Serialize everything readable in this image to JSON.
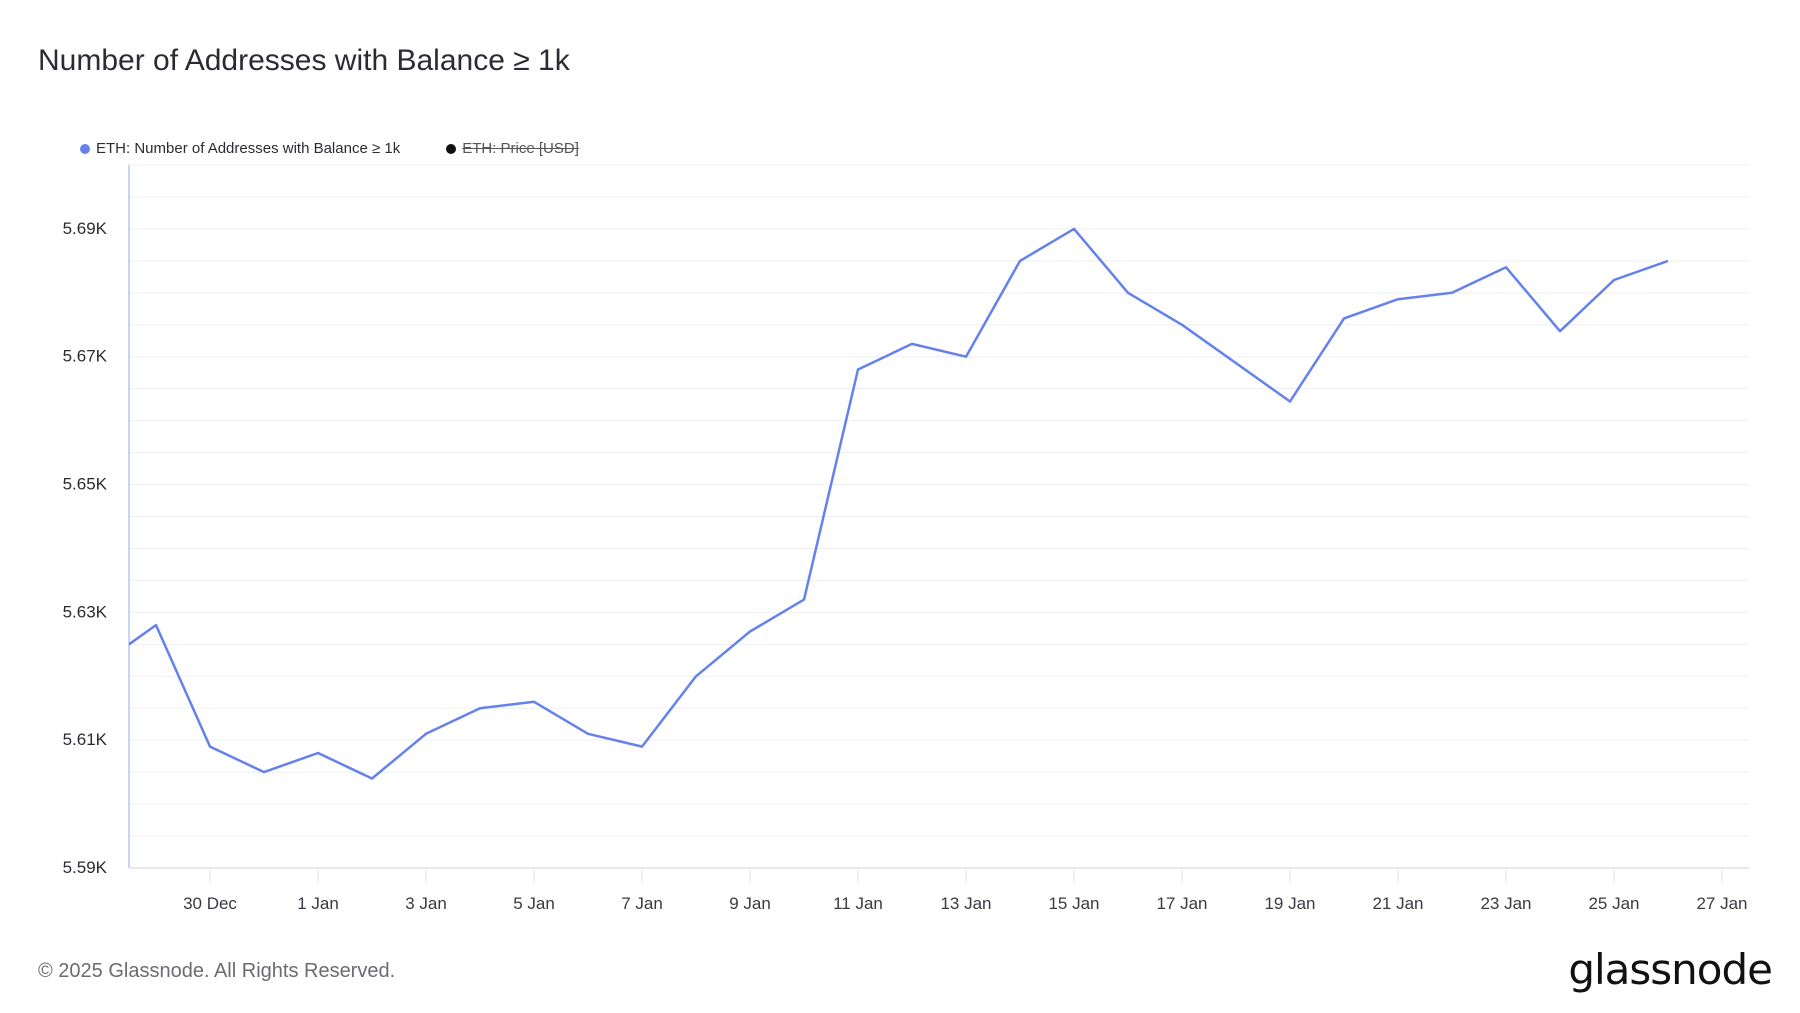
{
  "title": "Number of Addresses with Balance ≥ 1k",
  "legend": [
    {
      "label": "ETH: Number of Addresses with Balance ≥ 1k",
      "color": "#6481ee",
      "active": true
    },
    {
      "label": "ETH: Price [USD]",
      "color": "#111111",
      "active": false
    }
  ],
  "footer": "© 2025 Glassnode. All Rights Reserved.",
  "logo": "glassnode",
  "chart_data": {
    "type": "line",
    "title": "Number of Addresses with Balance ≥ 1k",
    "xlim": [
      "2024-12-28T12:00",
      "2025-01-27T12:00"
    ],
    "ylim": [
      5590,
      5700
    ],
    "grid": true,
    "legend_position": "top-left",
    "y_ticks": [
      5590,
      5610,
      5630,
      5650,
      5670,
      5690
    ],
    "y_tick_labels": [
      "5.59K",
      "5.61K",
      "5.63K",
      "5.65K",
      "5.67K",
      "5.69K"
    ],
    "x_ticks": [
      "2024-12-30",
      "2025-01-01",
      "2025-01-03",
      "2025-01-05",
      "2025-01-07",
      "2025-01-09",
      "2025-01-11",
      "2025-01-13",
      "2025-01-15",
      "2025-01-17",
      "2025-01-19",
      "2025-01-21",
      "2025-01-23",
      "2025-01-25",
      "2025-01-27"
    ],
    "x_tick_labels": [
      "30 Dec",
      "1 Jan",
      "3 Jan",
      "5 Jan",
      "7 Jan",
      "9 Jan",
      "11 Jan",
      "13 Jan",
      "15 Jan",
      "17 Jan",
      "19 Jan",
      "21 Jan",
      "23 Jan",
      "25 Jan",
      "27 Jan"
    ],
    "series": [
      {
        "name": "ETH: Number of Addresses with Balance ≥ 1k",
        "color": "#6481ee",
        "x": [
          "2024-12-28",
          "2024-12-29",
          "2024-12-30",
          "2024-12-31",
          "2025-01-01",
          "2025-01-02",
          "2025-01-03",
          "2025-01-04",
          "2025-01-05",
          "2025-01-06",
          "2025-01-07",
          "2025-01-08",
          "2025-01-09",
          "2025-01-10",
          "2025-01-11",
          "2025-01-12",
          "2025-01-13",
          "2025-01-14",
          "2025-01-15",
          "2025-01-16",
          "2025-01-17",
          "2025-01-18",
          "2025-01-19",
          "2025-01-20",
          "2025-01-21",
          "2025-01-22",
          "2025-01-23",
          "2025-01-24",
          "2025-01-25",
          "2025-01-26"
        ],
        "values": [
          5622,
          5628,
          5609,
          5605,
          5608,
          5604,
          5611,
          5615,
          5616,
          5611,
          5609,
          5620,
          5627,
          5632,
          5668,
          5672,
          5670,
          5685,
          5690,
          5680,
          5675,
          5669,
          5663,
          5676,
          5679,
          5680,
          5684,
          5674,
          5682,
          5685
        ]
      }
    ]
  }
}
